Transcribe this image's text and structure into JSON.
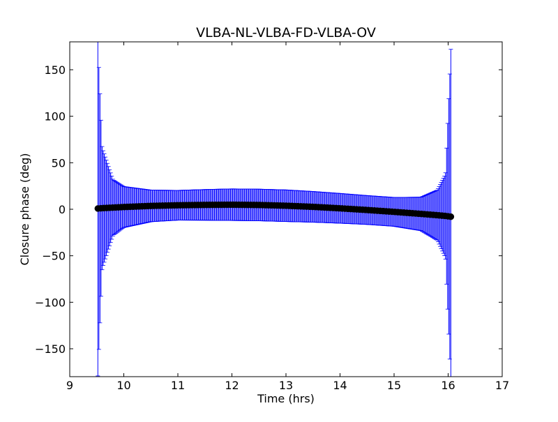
{
  "chart_data": {
    "type": "scatter",
    "title": "VLBA-NL-VLBA-FD-VLBA-OV",
    "xlabel": "Time (hrs)",
    "ylabel": "Closure phase (deg)",
    "xlim": [
      9,
      17
    ],
    "ylim": [
      -180,
      180
    ],
    "xticks": [
      9,
      10,
      11,
      12,
      13,
      14,
      15,
      16,
      17
    ],
    "yticks": [
      -150,
      -100,
      -50,
      0,
      50,
      100,
      150
    ],
    "xtick_labels": [
      "9",
      "10",
      "11",
      "12",
      "13",
      "14",
      "15",
      "16",
      "17"
    ],
    "ytick_labels": [
      "−150",
      "−100",
      "−50",
      "0",
      "50",
      "100",
      "150"
    ],
    "grid": false,
    "series": [
      {
        "marker": "circle",
        "color": "#000000",
        "errorbar_color": "#0000ff",
        "x_range": [
          9.52,
          16.05
        ],
        "points": [
          {
            "x": 9.52,
            "y": 0.8,
            "err": 180
          },
          {
            "x": 9.6,
            "y": 1.2,
            "err": 65
          },
          {
            "x": 9.8,
            "y": 1.8,
            "err": 30
          },
          {
            "x": 10.0,
            "y": 2.4,
            "err": 22
          },
          {
            "x": 10.5,
            "y": 3.6,
            "err": 17
          },
          {
            "x": 11.0,
            "y": 4.3,
            "err": 16
          },
          {
            "x": 11.5,
            "y": 4.7,
            "err": 16.5
          },
          {
            "x": 12.0,
            "y": 4.9,
            "err": 17
          },
          {
            "x": 12.5,
            "y": 4.6,
            "err": 17
          },
          {
            "x": 13.0,
            "y": 3.8,
            "err": 17
          },
          {
            "x": 13.5,
            "y": 2.6,
            "err": 16.5
          },
          {
            "x": 14.0,
            "y": 1.0,
            "err": 16
          },
          {
            "x": 14.5,
            "y": -0.8,
            "err": 15.5
          },
          {
            "x": 15.0,
            "y": -2.8,
            "err": 15.5
          },
          {
            "x": 15.5,
            "y": -5.0,
            "err": 18
          },
          {
            "x": 15.8,
            "y": -6.4,
            "err": 27
          },
          {
            "x": 15.95,
            "y": -7.2,
            "err": 45
          },
          {
            "x": 16.05,
            "y": -8.0,
            "err": 180
          }
        ]
      }
    ]
  }
}
